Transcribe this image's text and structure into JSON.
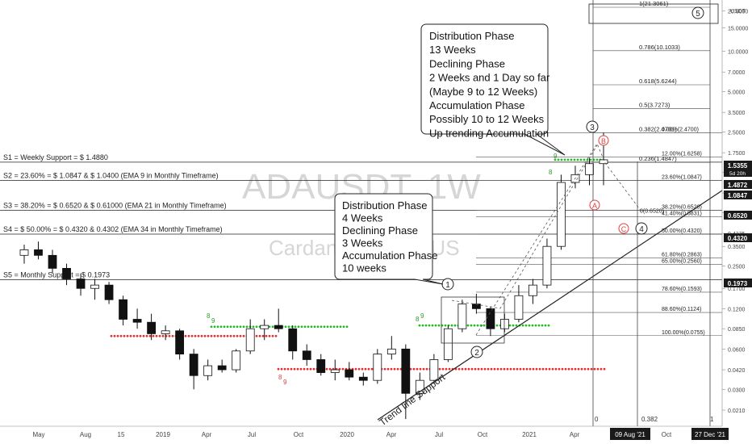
{
  "watermark": {
    "symbol": "ADAUSDT, 1W",
    "subtitle": "Cardano / Tether US"
  },
  "price_axis": {
    "currency": "USDT",
    "ticks": [
      "24.0000",
      "20.0000",
      "15.0000",
      "10.0000",
      "7.0000",
      "5.0000",
      "3.5000",
      "2.5000",
      "1.7500",
      "1.2500",
      "0.8750",
      "0.6250",
      "0.4375",
      "0.3500",
      "0.2500",
      "0.1700",
      "0.1200",
      "0.0850",
      "0.0600",
      "0.0420",
      "0.0300",
      "0.0210"
    ],
    "badges": [
      {
        "value": "1.5355",
        "sub": "5d 20h",
        "color": "#1a1a1a"
      },
      {
        "value": "1.4872",
        "color": "#1a1a1a"
      },
      {
        "value": "1.0847",
        "color": "#1a1a1a"
      },
      {
        "value": "0.6520",
        "color": "#1a1a1a"
      },
      {
        "value": "0.4320",
        "color": "#1a1a1a"
      },
      {
        "value": "0.1973",
        "color": "#1a1a1a"
      }
    ]
  },
  "time_axis": {
    "labels": [
      "May",
      "Aug",
      "15",
      "2019",
      "Apr",
      "Jul",
      "Oct",
      "2020",
      "Apr",
      "Jul",
      "Oct",
      "2021",
      "Apr",
      "Jul",
      "Oct"
    ],
    "badges": [
      "09 Aug '21",
      "27 Dec '21"
    ]
  },
  "support_lines": [
    {
      "label": "S1 = Weekly Support = $ 1.4880",
      "price": 1.488
    },
    {
      "label": "S2 = 23.60% = $ 1.0847 & $ 1.0400 (EMA 9 in Monthly Timeframe)",
      "price": 1.0847
    },
    {
      "label": "S3 = 38.20% = $ 0.6520 & $ 0.61000 (EMA 21 in Monthly Timeframe)",
      "price": 0.652
    },
    {
      "label": "S4 = $ 50.00% = $ 0.4320 & 0.4302 (EMA 34 in Monthly Timeframe)",
      "price": 0.432
    },
    {
      "label": "S5 = Monthly Support = $ 0.1973",
      "price": 0.1973
    }
  ],
  "fib_levels": [
    {
      "label": "1(21.3061)",
      "price": 21.3061
    },
    {
      "label": "0.786(10.1033)",
      "price": 10.1033
    },
    {
      "label": "0.618(5.6244)",
      "price": 5.6244
    },
    {
      "label": "0.5(3.7273)",
      "price": 3.7273
    },
    {
      "label": "0.382(2.4701)",
      "price": 2.4701
    },
    {
      "label": "0.236(1.4847)",
      "price": 1.4847
    }
  ],
  "retracement_levels": [
    {
      "label": "0.00%(2.4700)",
      "price": 2.47
    },
    {
      "label": "12.00%(1.6258)",
      "price": 1.6258
    },
    {
      "label": "23.60%(1.0847)",
      "price": 1.0847
    },
    {
      "label": "38.20%(0.6520)",
      "price": 0.652
    },
    {
      "label": "41.40%(0.5831)",
      "price": 0.5831
    },
    {
      "label": "50.00%(0.4320)",
      "price": 0.432
    },
    {
      "label": "61.80%(0.2863)",
      "price": 0.2863
    },
    {
      "label": "65.00%(0.2560)",
      "price": 0.256
    },
    {
      "label": "78.60%(0.1593)",
      "price": 0.1593
    },
    {
      "label": "88.60%(0.1124)",
      "price": 0.1124
    },
    {
      "label": "100.00%(0.0755)",
      "price": 0.0755
    }
  ],
  "extra_labels": {
    "fib_zero": "0(0.6520)",
    "time_fib_zero": "0",
    "time_fib_382": "0.382",
    "time_fib_one": "1"
  },
  "annotations": {
    "box1": [
      "Distribution Phase",
      "13 Weeks",
      "Declining Phase",
      "2 Weeks and 1 Day so far",
      "(Maybe 9 to 12 Weeks)",
      "Accumulation Phase",
      "Possibly 10 to 12 Weeks",
      "Up trending Accumulation"
    ],
    "box2": [
      "Distribution Phase",
      "4 Weeks",
      "Declining Phase",
      "3 Weeks",
      "Accumulation Phase",
      "10 weeks"
    ],
    "trend_line": "Trend line Support",
    "wave_labels": [
      "1",
      "2",
      "3",
      "4",
      "5"
    ],
    "corrective_labels": [
      "A",
      "B",
      "C"
    ],
    "td_labels": [
      "8",
      "9",
      "8",
      "9",
      "8",
      "9",
      "8",
      "9"
    ]
  },
  "chart_data": {
    "type": "candlestick",
    "title": "ADAUSDT, 1W",
    "scale": "log",
    "ylim": [
      0.018,
      26
    ],
    "candles": [
      {
        "t": "2018-04",
        "o": 0.3,
        "h": 0.36,
        "l": 0.26,
        "c": 0.33
      },
      {
        "t": "2018-05",
        "o": 0.33,
        "h": 0.38,
        "l": 0.28,
        "c": 0.3
      },
      {
        "t": "2018-05b",
        "o": 0.3,
        "h": 0.33,
        "l": 0.22,
        "c": 0.24
      },
      {
        "t": "2018-06",
        "o": 0.24,
        "h": 0.26,
        "l": 0.18,
        "c": 0.2
      },
      {
        "t": "2018-06b",
        "o": 0.2,
        "h": 0.22,
        "l": 0.15,
        "c": 0.17
      },
      {
        "t": "2018-07",
        "o": 0.17,
        "h": 0.2,
        "l": 0.14,
        "c": 0.18
      },
      {
        "t": "2018-07b",
        "o": 0.18,
        "h": 0.19,
        "l": 0.13,
        "c": 0.14
      },
      {
        "t": "2018-08",
        "o": 0.14,
        "h": 0.15,
        "l": 0.09,
        "c": 0.1
      },
      {
        "t": "2018-08b",
        "o": 0.1,
        "h": 0.12,
        "l": 0.085,
        "c": 0.095
      },
      {
        "t": "2018-09",
        "o": 0.095,
        "h": 0.11,
        "l": 0.07,
        "c": 0.078
      },
      {
        "t": "2018-10",
        "o": 0.078,
        "h": 0.09,
        "l": 0.07,
        "c": 0.082
      },
      {
        "t": "2018-11",
        "o": 0.082,
        "h": 0.085,
        "l": 0.05,
        "c": 0.055
      },
      {
        "t": "2018-12",
        "o": 0.055,
        "h": 0.06,
        "l": 0.03,
        "c": 0.038
      },
      {
        "t": "2019-01",
        "o": 0.038,
        "h": 0.05,
        "l": 0.035,
        "c": 0.045
      },
      {
        "t": "2019-02",
        "o": 0.045,
        "h": 0.05,
        "l": 0.04,
        "c": 0.042
      },
      {
        "t": "2019-03",
        "o": 0.042,
        "h": 0.06,
        "l": 0.04,
        "c": 0.058
      },
      {
        "t": "2019-04",
        "o": 0.058,
        "h": 0.1,
        "l": 0.055,
        "c": 0.085
      },
      {
        "t": "2019-05",
        "o": 0.085,
        "h": 0.1,
        "l": 0.07,
        "c": 0.09
      },
      {
        "t": "2019-06",
        "o": 0.09,
        "h": 0.12,
        "l": 0.08,
        "c": 0.085
      },
      {
        "t": "2019-07",
        "o": 0.085,
        "h": 0.09,
        "l": 0.05,
        "c": 0.058
      },
      {
        "t": "2019-08",
        "o": 0.058,
        "h": 0.065,
        "l": 0.045,
        "c": 0.05
      },
      {
        "t": "2019-09",
        "o": 0.05,
        "h": 0.055,
        "l": 0.038,
        "c": 0.04
      },
      {
        "t": "2019-10",
        "o": 0.04,
        "h": 0.05,
        "l": 0.035,
        "c": 0.042
      },
      {
        "t": "2019-11",
        "o": 0.042,
        "h": 0.048,
        "l": 0.035,
        "c": 0.037
      },
      {
        "t": "2019-12",
        "o": 0.037,
        "h": 0.04,
        "l": 0.032,
        "c": 0.035
      },
      {
        "t": "2020-01",
        "o": 0.035,
        "h": 0.06,
        "l": 0.033,
        "c": 0.055
      },
      {
        "t": "2020-02",
        "o": 0.055,
        "h": 0.075,
        "l": 0.05,
        "c": 0.06
      },
      {
        "t": "2020-03",
        "o": 0.06,
        "h": 0.065,
        "l": 0.018,
        "c": 0.028
      },
      {
        "t": "2020-04",
        "o": 0.028,
        "h": 0.04,
        "l": 0.025,
        "c": 0.035
      },
      {
        "t": "2020-05",
        "o": 0.035,
        "h": 0.055,
        "l": 0.033,
        "c": 0.05
      },
      {
        "t": "2020-06",
        "o": 0.05,
        "h": 0.09,
        "l": 0.048,
        "c": 0.085
      },
      {
        "t": "2020-07",
        "o": 0.085,
        "h": 0.14,
        "l": 0.08,
        "c": 0.13
      },
      {
        "t": "2020-08",
        "o": 0.13,
        "h": 0.155,
        "l": 0.11,
        "c": 0.12
      },
      {
        "t": "2020-09",
        "o": 0.12,
        "h": 0.125,
        "l": 0.075,
        "c": 0.085
      },
      {
        "t": "2020-10",
        "o": 0.085,
        "h": 0.11,
        "l": 0.08,
        "c": 0.1
      },
      {
        "t": "2020-11",
        "o": 0.1,
        "h": 0.18,
        "l": 0.095,
        "c": 0.15
      },
      {
        "t": "2020-12",
        "o": 0.15,
        "h": 0.2,
        "l": 0.13,
        "c": 0.18
      },
      {
        "t": "2021-01",
        "o": 0.18,
        "h": 0.4,
        "l": 0.17,
        "c": 0.35
      },
      {
        "t": "2021-02",
        "o": 0.35,
        "h": 1.2,
        "l": 0.33,
        "c": 1.05
      },
      {
        "t": "2021-03",
        "o": 1.05,
        "h": 1.4,
        "l": 0.95,
        "c": 1.2
      },
      {
        "t": "2021-04",
        "o": 1.2,
        "h": 1.6,
        "l": 1.0,
        "c": 1.45
      },
      {
        "t": "2021-05",
        "o": 1.45,
        "h": 2.47,
        "l": 1.0,
        "c": 1.55
      }
    ]
  }
}
